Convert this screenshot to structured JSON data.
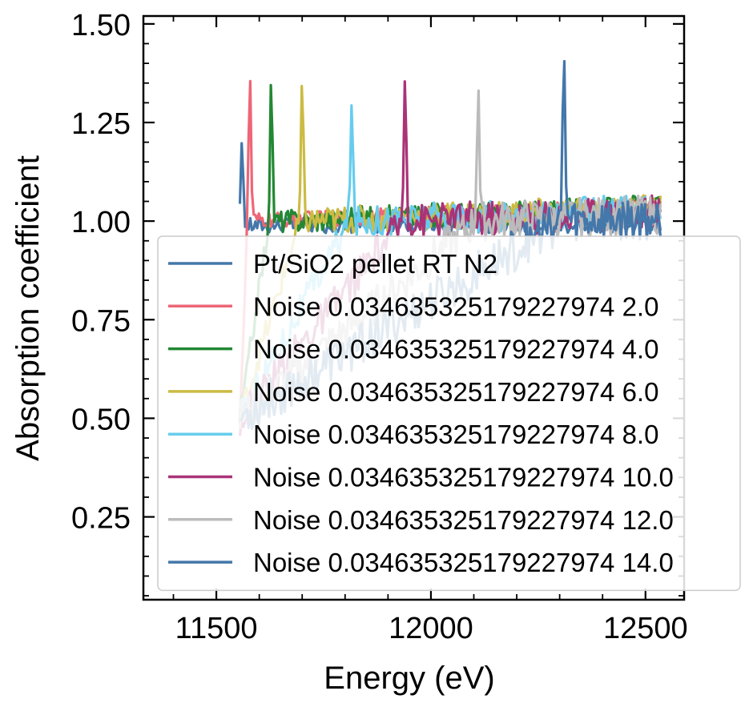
{
  "chart_data": {
    "type": "line",
    "xlabel": "Energy (eV)",
    "ylabel": "Absorption coefficient",
    "xlim": [
      11330,
      12590
    ],
    "ylim": [
      0.04,
      1.52
    ],
    "xticks": [
      11500,
      12000,
      12500
    ],
    "xtick_labels": [
      "11500",
      "12000",
      "12500"
    ],
    "yticks": [
      0.25,
      0.5,
      0.75,
      1.0,
      1.25,
      1.5
    ],
    "ytick_labels": [
      "0.25",
      "0.50",
      "0.75",
      "1.00",
      "1.25",
      "1.50"
    ],
    "x_range": [
      11555,
      12535
    ],
    "legend_position": "lower right",
    "series": [
      {
        "name": "Pt/SiO2 pellet RT N2",
        "color": "#4477AA",
        "peak_x": 11560,
        "peak_y": 1.21,
        "noise": 0.0
      },
      {
        "name": "Noise 0.034635325179227974 2.0",
        "color": "#EE6677",
        "peak_x": 11578,
        "peak_y": 1.37,
        "noise": 0.02
      },
      {
        "name": "Noise 0.034635325179227974 4.0",
        "color": "#228833",
        "peak_x": 11628,
        "peak_y": 1.34,
        "noise": 0.03
      },
      {
        "name": "Noise 0.034635325179227974 6.0",
        "color": "#CCBB44",
        "peak_x": 11700,
        "peak_y": 1.34,
        "noise": 0.035
      },
      {
        "name": "Noise 0.034635325179227974 8.0",
        "color": "#66CCEE",
        "peak_x": 11815,
        "peak_y": 1.32,
        "noise": 0.04
      },
      {
        "name": "Noise 0.034635325179227974 10.0",
        "color": "#AA3377",
        "peak_x": 11940,
        "peak_y": 1.39,
        "noise": 0.045
      },
      {
        "name": "Noise 0.034635325179227974 12.0",
        "color": "#BBBBBB",
        "peak_x": 12110,
        "peak_y": 1.37,
        "noise": 0.05
      },
      {
        "name": "Noise 0.034635325179227974 14.0",
        "color": "#4477AA",
        "peak_x": 12310,
        "peak_y": 1.45,
        "noise": 0.055
      }
    ]
  }
}
